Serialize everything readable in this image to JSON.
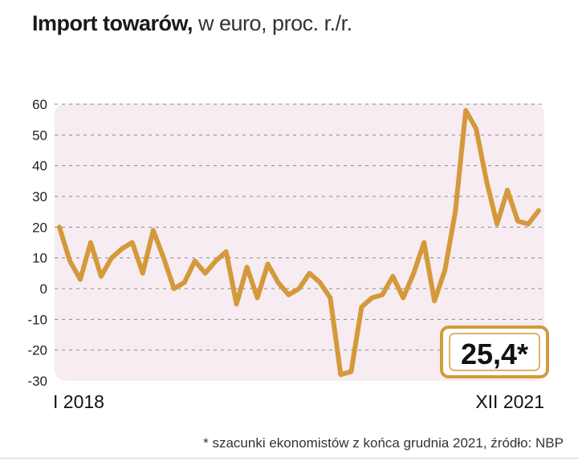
{
  "title_bold": "Import towarów,",
  "title_rest": "w euro, proc. r./r.",
  "callout": "25,4*",
  "footnote": "* szacunki ekonomistów z końca grudnia 2021, źródło: NBP",
  "colors": {
    "line": "#D4993A",
    "plot_bg": "#F6ECF1",
    "callout_border": "#D4993A",
    "grid": "#8a8a8a"
  },
  "chart_data": {
    "type": "line",
    "title": "Import towarów, w euro, proc. r./r.",
    "xlabel": "",
    "ylabel": "",
    "ylim": [
      -30,
      60
    ],
    "yticks": [
      60,
      50,
      40,
      30,
      20,
      10,
      0,
      -10,
      -20,
      -30
    ],
    "x_start_label": "I 2018",
    "x_end_label": "XII 2021",
    "grid": true,
    "series": [
      {
        "name": "Import towarów",
        "values": [
          20,
          9,
          3,
          15,
          4,
          10,
          13,
          15,
          5,
          19,
          10,
          0,
          2,
          9,
          5,
          9,
          12,
          -5,
          7,
          -3,
          8,
          2,
          -2,
          0,
          5,
          2,
          -3,
          -28,
          -27,
          -6,
          -3,
          -2,
          4,
          -3,
          5,
          15,
          -4,
          6,
          25,
          58,
          52,
          35,
          21,
          32,
          22,
          21,
          25.4
        ]
      }
    ]
  }
}
